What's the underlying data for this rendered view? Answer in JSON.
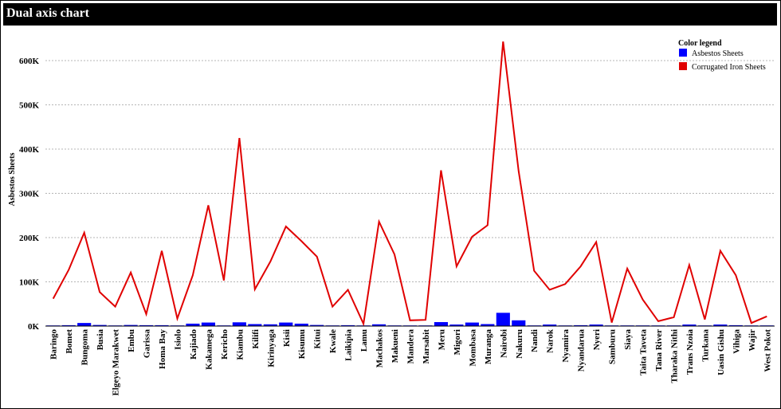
{
  "chart_data": {
    "type": "bar",
    "title": "Dual axis chart",
    "ylabel": "Asbestos Sheets",
    "ylim": [
      0,
      650000
    ],
    "yticks": [
      0,
      100000,
      200000,
      300000,
      400000,
      500000,
      600000
    ],
    "ytick_labels": [
      "0K",
      "100K",
      "200K",
      "300K",
      "400K",
      "500K",
      "600K"
    ],
    "grid": true,
    "legend_title": "Color legend",
    "legend_placement": "top-right",
    "categories": [
      "Baringo",
      "Bomet",
      "Bungoma",
      "Busia",
      "Elgeyo Marakwet",
      "Embu",
      "Garissa",
      "Homa Bay",
      "Isiolo",
      "Kajiado",
      "Kakamega",
      "Kericho",
      "Kiambu",
      "Kilifi",
      "Kirinyaga",
      "Kisii",
      "Kisumu",
      "Kitui",
      "Kwale",
      "Laikipia",
      "Lamu",
      "Machakos",
      "Makueni",
      "Mandera",
      "Marsabit",
      "Meru",
      "Migori",
      "Mombasa",
      "Muranga",
      "Nairobi",
      "Nakuru",
      "Nandi",
      "Narok",
      "Nyamira",
      "Nyandarua",
      "Nyeri",
      "Samburu",
      "Siaya",
      "Taita Taveta",
      "Tana River",
      "Tharaka Nithi",
      "Trans Nzoia",
      "Turkana",
      "Uasin Gishu",
      "Vihiga",
      "Wajir",
      "West Pokot"
    ],
    "series": [
      {
        "name": "Asbestos Sheets",
        "type": "bar",
        "color": "#0000ff",
        "values": [
          1000,
          2000,
          7000,
          2500,
          1000,
          2500,
          2000,
          2000,
          500,
          5500,
          8000,
          1500,
          8500,
          4500,
          4000,
          8000,
          5500,
          2500,
          1500,
          2000,
          500,
          4000,
          1500,
          500,
          500,
          9000,
          3500,
          8000,
          4500,
          30000,
          13000,
          1500,
          3500,
          1000,
          2000,
          3500,
          500,
          1500,
          1500,
          500,
          1000,
          3500,
          500,
          3500,
          2000,
          500,
          1500
        ]
      },
      {
        "name": "Corrugated Iron Sheets",
        "type": "line",
        "color": "#e00000",
        "values": [
          62000,
          127000,
          211000,
          77000,
          44000,
          121000,
          27000,
          170000,
          17000,
          115000,
          273000,
          103000,
          425000,
          83000,
          146000,
          225000,
          192000,
          157000,
          44000,
          82000,
          5000,
          236000,
          162000,
          13000,
          14000,
          352000,
          135000,
          202000,
          228000,
          643000,
          350000,
          125000,
          82000,
          95000,
          135000,
          190000,
          8000,
          130000,
          60000,
          11000,
          20000,
          138000,
          15000,
          170000,
          115000,
          7000,
          22000
        ]
      }
    ]
  }
}
